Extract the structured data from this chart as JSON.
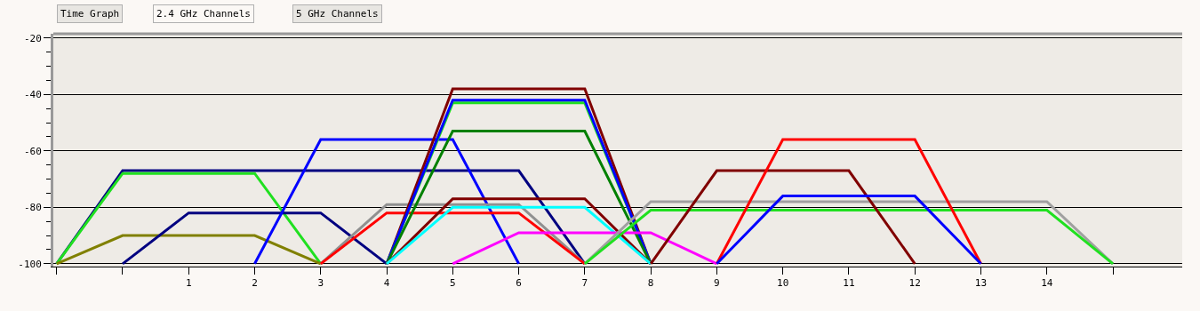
{
  "chart_data": {
    "type": "line",
    "annotations": [
      "Time Graph",
      "2.4 GHz Channels",
      "5 GHz Channels"
    ],
    "xlim": [
      -1.05,
      16.05
    ],
    "xticks": [
      {
        "value": -1,
        "label": null
      },
      {
        "value": 0,
        "label": null
      },
      1,
      2,
      3,
      4,
      5,
      6,
      7,
      8,
      9,
      10,
      11,
      12,
      13,
      14,
      {
        "value": 15,
        "label": null
      }
    ],
    "ylim": [
      -101,
      -18.5
    ],
    "yticks": [
      -20,
      {
        "value": -25,
        "label": null
      },
      {
        "value": -30,
        "label": null
      },
      {
        "value": -35,
        "label": null
      },
      -40,
      {
        "value": -45,
        "label": null
      },
      {
        "value": -50,
        "label": null
      },
      {
        "value": -55,
        "label": null
      },
      -60,
      {
        "value": -65,
        "label": null
      },
      {
        "value": -70,
        "label": null
      },
      {
        "value": -75,
        "label": null
      },
      -80,
      {
        "value": -85,
        "label": null
      },
      {
        "value": -90,
        "label": null
      },
      {
        "value": -95,
        "label": null
      },
      -100
    ],
    "grid": "y",
    "marker": "none",
    "line_style": "solid",
    "series": [
      {
        "color": "#000080",
        "x": [
          -1,
          0,
          6,
          7
        ],
        "values": [
          -100,
          -67,
          -67,
          -100
        ]
      },
      {
        "color": "#20e020",
        "x": [
          -1,
          0,
          2,
          3
        ],
        "values": [
          -100,
          -68,
          -68,
          -100
        ]
      },
      {
        "color": "#808000",
        "x": [
          -1,
          0,
          2,
          3
        ],
        "values": [
          -100,
          -90,
          -90,
          -100
        ]
      },
      {
        "color": "#000080",
        "x": [
          0,
          1,
          3,
          4
        ],
        "values": [
          -100,
          -82,
          -82,
          -100
        ]
      },
      {
        "color": "#0000ff",
        "x": [
          2,
          3,
          5,
          6
        ],
        "values": [
          -100,
          -56,
          -56,
          -100
        ]
      },
      {
        "color": "#909090",
        "x": [
          3,
          4,
          6,
          7
        ],
        "values": [
          -100,
          -79,
          -79,
          -100
        ]
      },
      {
        "color": "#ff0000",
        "x": [
          3,
          4,
          6,
          7
        ],
        "values": [
          -100,
          -82,
          -82,
          -100
        ]
      },
      {
        "color": "#800000",
        "x": [
          4,
          5,
          7,
          8
        ],
        "values": [
          -100,
          -38,
          -38,
          -100
        ]
      },
      {
        "color": "#20e020",
        "x": [
          4,
          5,
          7,
          8
        ],
        "values": [
          -100,
          -43,
          -43,
          -100
        ]
      },
      {
        "color": "#0000ff",
        "x": [
          4,
          5,
          7,
          8
        ],
        "values": [
          -100,
          -42,
          -42,
          -100
        ]
      },
      {
        "color": "#008000",
        "x": [
          4,
          5,
          7,
          8
        ],
        "values": [
          -100,
          -53,
          -53,
          -100
        ]
      },
      {
        "color": "#800000",
        "x": [
          4,
          5,
          7,
          8
        ],
        "values": [
          -100,
          -77,
          -77,
          -100
        ]
      },
      {
        "color": "#00ffff",
        "x": [
          4,
          5,
          7,
          8
        ],
        "values": [
          -100,
          -80,
          -80,
          -100
        ]
      },
      {
        "color": "#ff00ff",
        "x": [
          5,
          6,
          8,
          9
        ],
        "values": [
          -100,
          -89,
          -89,
          -100
        ]
      },
      {
        "color": "#a0a0a0",
        "x": [
          7,
          8,
          14,
          15
        ],
        "values": [
          -100,
          -78,
          -78,
          -100
        ]
      },
      {
        "color": "#20e020",
        "x": [
          7,
          8,
          14,
          15
        ],
        "values": [
          -100,
          -81,
          -81,
          -100
        ]
      },
      {
        "color": "#800000",
        "x": [
          8,
          9,
          11,
          12
        ],
        "values": [
          -100,
          -67,
          -67,
          -100
        ]
      },
      {
        "color": "#ff0000",
        "x": [
          9,
          10,
          12,
          13
        ],
        "values": [
          -100,
          -56,
          -56,
          -100
        ]
      },
      {
        "color": "#0000ff",
        "x": [
          9,
          10,
          12,
          13
        ],
        "values": [
          -100,
          -76,
          -76,
          -100
        ]
      }
    ]
  }
}
